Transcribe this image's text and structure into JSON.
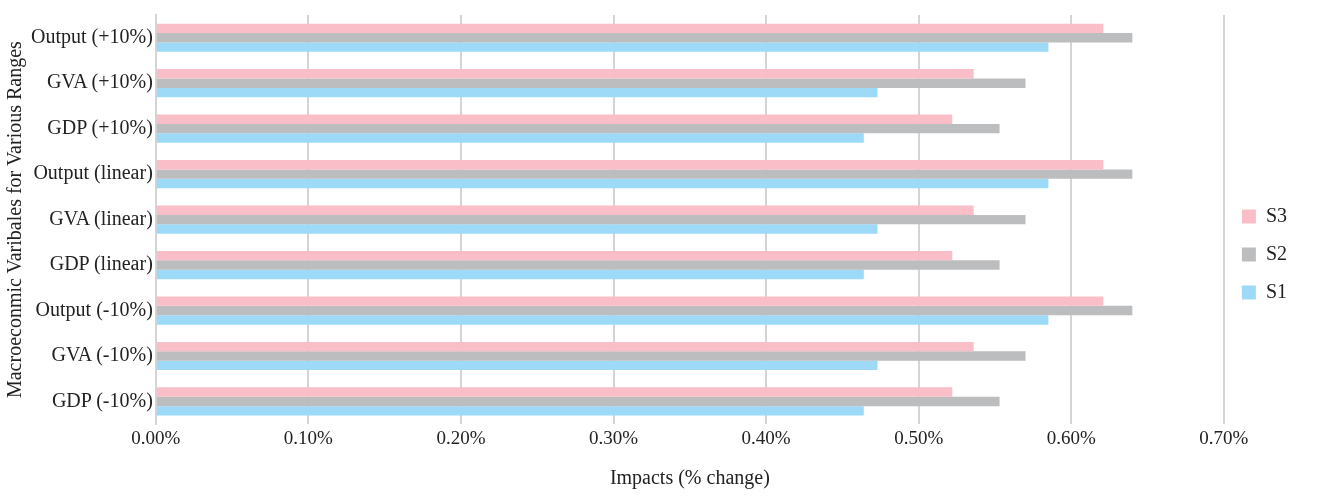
{
  "chart_data": {
    "type": "bar",
    "orientation": "horizontal",
    "xlabel": "Impacts (% change)",
    "ylabel": "Macroeconmic Varibales for Various Ranges",
    "categories": [
      "Output (+10%)",
      "GVA (+10%)",
      "GDP (+10%)",
      "Output (linear)",
      "GVA (linear)",
      "GDP (linear)",
      "Output (-10%)",
      "GVA (-10%)",
      "GDP (-10%)"
    ],
    "series": [
      {
        "name": "S3",
        "color": "#f9bec7",
        "values": [
          0.621,
          0.536,
          0.522,
          0.621,
          0.536,
          0.522,
          0.621,
          0.536,
          0.522
        ]
      },
      {
        "name": "S2",
        "color": "#bcbdbe",
        "values": [
          0.64,
          0.57,
          0.553,
          0.64,
          0.57,
          0.553,
          0.64,
          0.57,
          0.553
        ]
      },
      {
        "name": "S1",
        "color": "#9cdaf8",
        "values": [
          0.585,
          0.473,
          0.464,
          0.585,
          0.473,
          0.464,
          0.585,
          0.473,
          0.464
        ]
      }
    ],
    "xlim": [
      0,
      0.7
    ],
    "xticks": [
      {
        "value": 0,
        "label": "0.00%"
      },
      {
        "value": 0.1,
        "label": "0.10%"
      },
      {
        "value": 0.2,
        "label": "0.20%"
      },
      {
        "value": 0.3,
        "label": "0.30%"
      },
      {
        "value": 0.4,
        "label": "0.40%"
      },
      {
        "value": 0.5,
        "label": "0.50%"
      },
      {
        "value": 0.6,
        "label": "0.60%"
      },
      {
        "value": 0.7,
        "label": "0.70%"
      }
    ],
    "grid": "x",
    "legend": "right"
  }
}
